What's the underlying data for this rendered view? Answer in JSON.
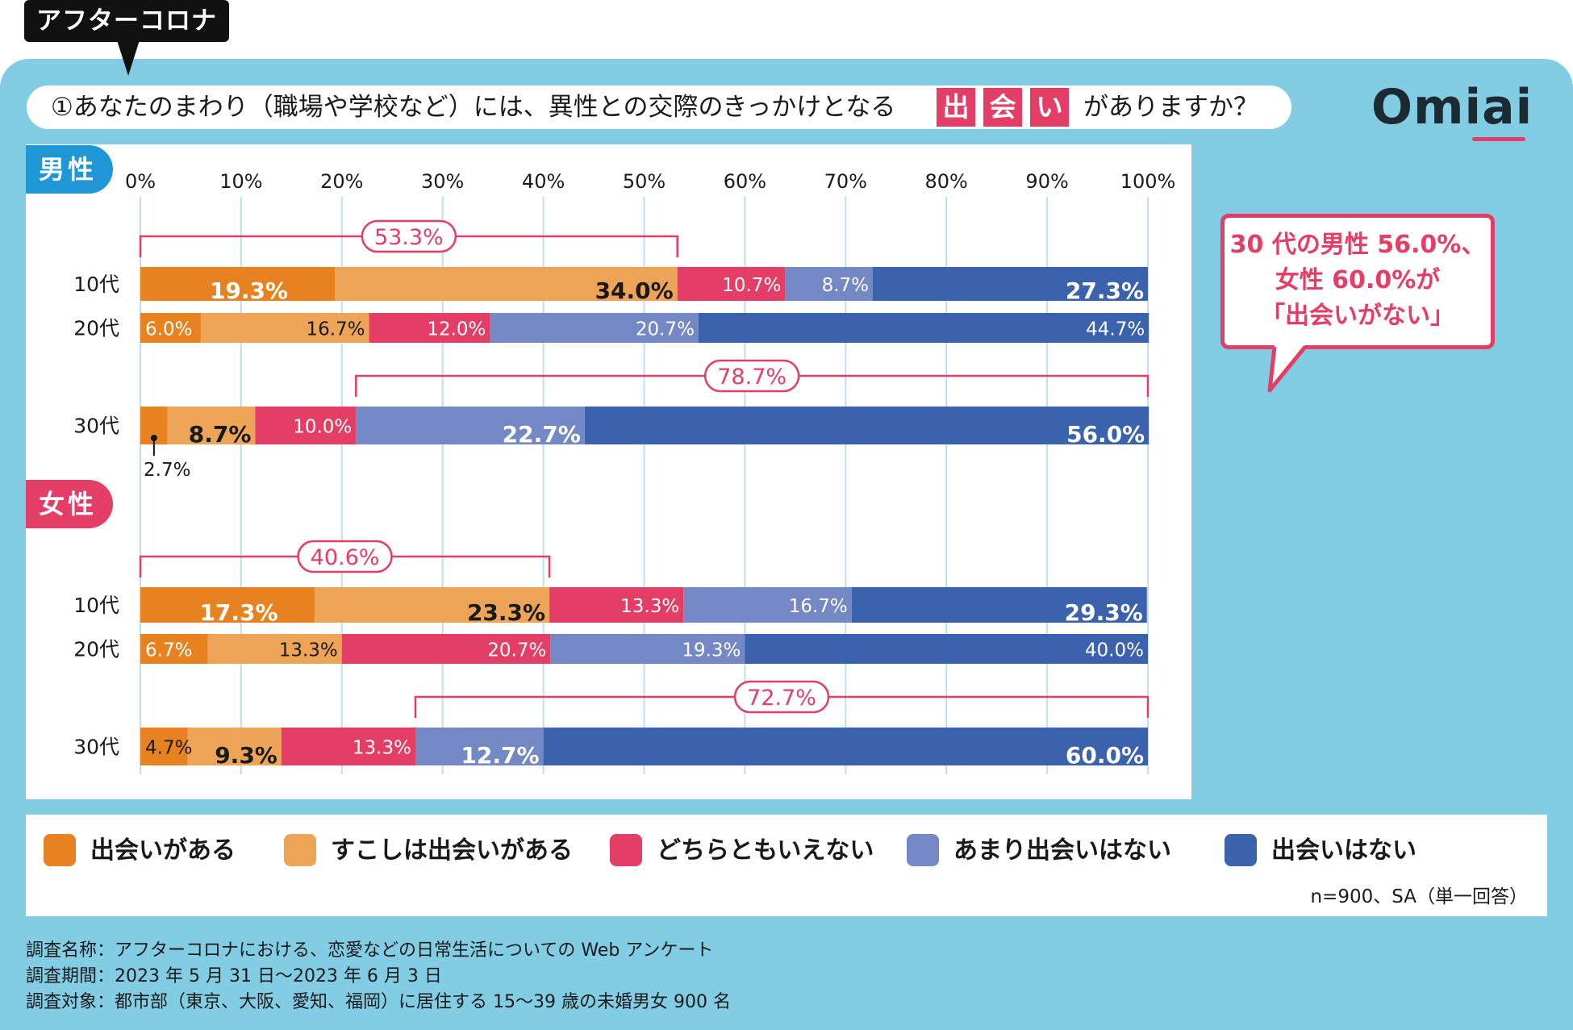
{
  "tag": "アフターコロナ",
  "question": {
    "prefix": "①あなたのまわり（職場や学校など）には、異性との交際のきっかけとなる",
    "highlight": [
      "出",
      "会",
      "い"
    ],
    "suffix": "がありますか？"
  },
  "logo": "Omiai",
  "callout": [
    "30 代の男性 56.0%、",
    "女性 60.0%が",
    "「出会いがない」"
  ],
  "colors": {
    "deai_aru": "#e8811f",
    "sukoshi": "#eea457",
    "dochira": "#e43d66",
    "amari": "#7388c5",
    "nai": "#3a62ad",
    "pink": "#e43d66",
    "panel": "#82cde4",
    "male_tab": "#1f96d6"
  },
  "chart_data": {
    "type": "bar",
    "orientation": "horizontal-stacked-100",
    "axis_ticks": [
      "0%",
      "10%",
      "20%",
      "30%",
      "40%",
      "50%",
      "60%",
      "70%",
      "80%",
      "90%",
      "100%"
    ],
    "xlim": [
      0,
      100
    ],
    "series_names": [
      "出会いがある",
      "すこしは出会いがある",
      "どちらともいえない",
      "あまり出会いはない",
      "出会いはない"
    ],
    "groups": [
      {
        "label": "男性",
        "rows": [
          {
            "category": "10代",
            "values": [
              19.3,
              34.0,
              10.7,
              8.7,
              27.3
            ],
            "labels": [
              "19.3%",
              "34.0%",
              "10.7%",
              "8.7%",
              "27.3%"
            ],
            "big": true,
            "bracket": {
              "label": "53.3%",
              "span": "first-two"
            }
          },
          {
            "category": "20代",
            "values": [
              6.0,
              16.7,
              12.0,
              20.7,
              44.7
            ],
            "labels": [
              "6.0%",
              "16.7%",
              "12.0%",
              "20.7%",
              "44.7%"
            ],
            "big": false
          },
          {
            "category": "30代",
            "values": [
              2.7,
              8.7,
              10.0,
              22.7,
              56.0
            ],
            "labels": [
              "2.7%",
              "8.7%",
              "10.0%",
              "22.7%",
              "56.0%"
            ],
            "big": true,
            "bracket": {
              "label": "78.7%",
              "span": "last-two"
            }
          }
        ]
      },
      {
        "label": "女性",
        "rows": [
          {
            "category": "10代",
            "values": [
              17.3,
              23.3,
              13.3,
              16.7,
              29.3
            ],
            "labels": [
              "17.3%",
              "23.3%",
              "13.3%",
              "16.7%",
              "29.3%"
            ],
            "big": true,
            "bracket": {
              "label": "40.6%",
              "span": "first-two"
            }
          },
          {
            "category": "20代",
            "values": [
              6.7,
              13.3,
              20.7,
              19.3,
              40.0
            ],
            "labels": [
              "6.7%",
              "13.3%",
              "20.7%",
              "19.3%",
              "40.0%"
            ],
            "big": false
          },
          {
            "category": "30代",
            "values": [
              4.7,
              9.3,
              13.3,
              12.7,
              60.0
            ],
            "labels": [
              "4.7%",
              "9.3%",
              "13.3%",
              "12.7%",
              "60.0%"
            ],
            "big": true,
            "bracket": {
              "label": "72.7%",
              "span": "last-two"
            }
          }
        ]
      }
    ]
  },
  "legend": [
    "出会いがある",
    "すこしは出会いがある",
    "どちらともいえない",
    "あまり出会いはない",
    "出会いはない"
  ],
  "sample_note": "n=900、SA（単一回答）",
  "footer": [
    "調査名称：アフターコロナにおける、恋愛などの日常生活についての Web アンケート",
    "調査期間：2023 年 5 月 31 日～2023 年 6 月 3 日",
    "調査対象：都市部（東京、大阪、愛知、福岡）に居住する 15～39 歳の未婚男女 900 名"
  ]
}
